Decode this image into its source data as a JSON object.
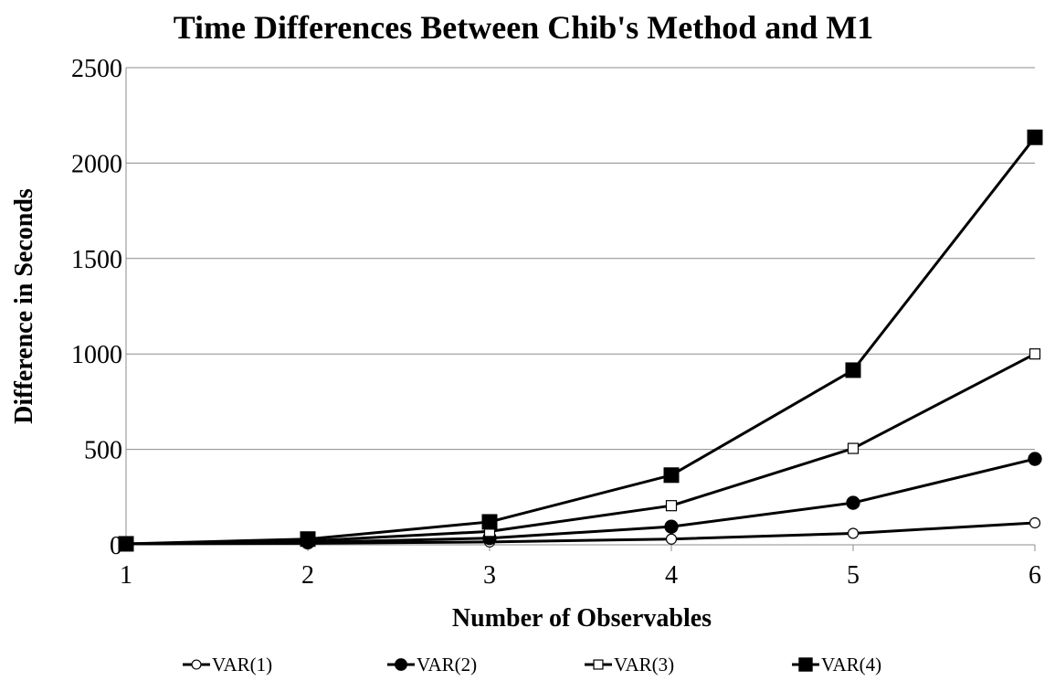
{
  "chart_data": {
    "type": "line",
    "title": "Time Differences Between Chib's Method and M1",
    "xlabel": "Number of Observables",
    "ylabel": "Difference in Seconds",
    "x": [
      1,
      2,
      3,
      4,
      5,
      6
    ],
    "x_ticks": [
      "1",
      "2",
      "3",
      "4",
      "5",
      "6"
    ],
    "y_ticks": [
      "0",
      "500",
      "1000",
      "1500",
      "2000",
      "2500"
    ],
    "ylim": [
      0,
      2500
    ],
    "grid": "horizontal",
    "legend_position": "bottom",
    "series": [
      {
        "name": "VAR(1)",
        "values": [
          5,
          8,
          15,
          30,
          60,
          115
        ],
        "marker": "circle-open",
        "color": "#000000"
      },
      {
        "name": "VAR(2)",
        "values": [
          5,
          12,
          35,
          95,
          220,
          450
        ],
        "marker": "circle-filled",
        "color": "#000000"
      },
      {
        "name": "VAR(3)",
        "values": [
          5,
          20,
          70,
          205,
          505,
          1000
        ],
        "marker": "square-open",
        "color": "#000000"
      },
      {
        "name": "VAR(4)",
        "values": [
          5,
          30,
          120,
          365,
          915,
          2135
        ],
        "marker": "square-filled",
        "color": "#000000"
      }
    ]
  }
}
